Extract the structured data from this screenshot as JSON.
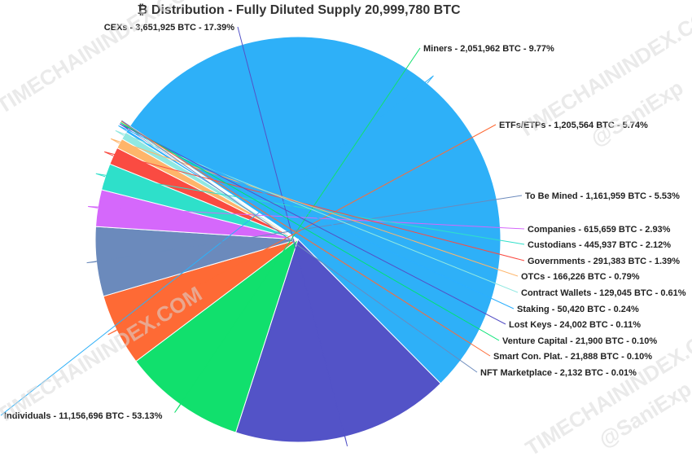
{
  "watermarks": {
    "site": "TIMECHAININDEX.COM",
    "handle": "@SaniExp"
  },
  "chart_data": {
    "type": "pie",
    "title": "₿ Distribution - Fully Diluted Supply 20,999,780 BTC",
    "slices": [
      {
        "name": "Individuals",
        "value": 11156696,
        "percent": 53.13,
        "label": "Individuals - 11,156,696 BTC - 53.13%",
        "color": "#2eb0f8"
      },
      {
        "name": "CEXs",
        "value": 3651925,
        "percent": 17.39,
        "label": "CEXs - 3,651,925 BTC - 17.39%",
        "color": "#5353c7"
      },
      {
        "name": "Miners",
        "value": 2051962,
        "percent": 9.77,
        "label": "Miners - 2,051,962 BTC - 9.77%",
        "color": "#11e06d"
      },
      {
        "name": "ETFs/ETPs",
        "value": 1205564,
        "percent": 5.74,
        "label": "ETFs/ETPs - 1,205,564 BTC - 5.74%",
        "color": "#fe6a35"
      },
      {
        "name": "To Be Mined",
        "value": 1161959,
        "percent": 5.53,
        "label": "To Be Mined - 1,161,959 BTC - 5.53%",
        "color": "#6b8abc"
      },
      {
        "name": "Companies",
        "value": 615659,
        "percent": 2.93,
        "label": "Companies - 615,659 BTC - 2.93%",
        "color": "#d568fb"
      },
      {
        "name": "Custodians",
        "value": 445937,
        "percent": 2.12,
        "label": "Custodians - 445,937 BTC - 2.12%",
        "color": "#2ee0ca"
      },
      {
        "name": "Governments",
        "value": 291383,
        "percent": 1.39,
        "label": "Governments - 291,383 BTC - 1.39%",
        "color": "#fa4b42"
      },
      {
        "name": "OTCs",
        "value": 166226,
        "percent": 0.79,
        "label": "OTCs - 166,226 BTC - 0.79%",
        "color": "#feb56a"
      },
      {
        "name": "Contract Wallets",
        "value": 129045,
        "percent": 0.61,
        "label": "Contract Wallets - 129,045 BTC - 0.61%",
        "color": "#91e8e1"
      },
      {
        "name": "Staking",
        "value": 50420,
        "percent": 0.24,
        "label": "Staking - 50,420 BTC - 0.24%",
        "color": "#2caffe"
      },
      {
        "name": "Lost Keys",
        "value": 24002,
        "percent": 0.11,
        "label": "Lost Keys - 24,002 BTC - 0.11%",
        "color": "#544fc5"
      },
      {
        "name": "Venture Capital",
        "value": 21900,
        "percent": 0.1,
        "label": "Venture Capital - 21,900 BTC - 0.10%",
        "color": "#00e272"
      },
      {
        "name": "Smart Con. Plat.",
        "value": 21888,
        "percent": 0.1,
        "label": "Smart Con. Plat. - 21,888 BTC - 0.10%",
        "color": "#fe6a35"
      },
      {
        "name": "NFT Marketplace",
        "value": 2132,
        "percent": 0.01,
        "label": "NFT Marketplace - 2,132 BTC - 0.01%",
        "color": "#6b8abc"
      }
    ]
  }
}
